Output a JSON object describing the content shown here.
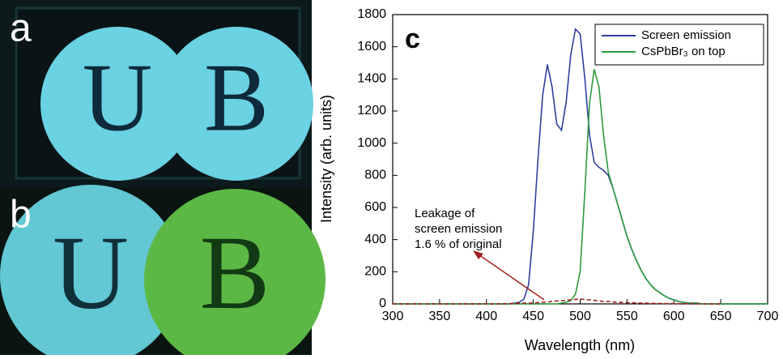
{
  "photo_panels": [
    {
      "label": "a",
      "letters": [
        "U",
        "B"
      ]
    },
    {
      "label": "b",
      "letters": [
        "U",
        "B"
      ]
    }
  ],
  "chart_data": {
    "type": "line",
    "panel_label": "c",
    "x_label": "Wavelength (nm)",
    "y_label": "Intensity (arb. units)",
    "xlim": [
      300,
      700
    ],
    "xticks": [
      300,
      350,
      400,
      450,
      500,
      550,
      600,
      650,
      700
    ],
    "ylim": [
      0,
      1800
    ],
    "yticks": [
      0,
      200,
      400,
      600,
      800,
      1000,
      1200,
      1400,
      1600,
      1800
    ],
    "legend": "top-right",
    "annotation": [
      "Leakage of",
      "screen emission",
      "1.6 % of original"
    ],
    "x": [
      300,
      305,
      310,
      315,
      320,
      325,
      330,
      335,
      340,
      345,
      350,
      355,
      360,
      365,
      370,
      375,
      380,
      385,
      390,
      395,
      400,
      405,
      410,
      415,
      420,
      425,
      430,
      435,
      440,
      445,
      450,
      455,
      460,
      465,
      470,
      475,
      480,
      485,
      490,
      495,
      500,
      505,
      510,
      515,
      520,
      525,
      530,
      535,
      540,
      545,
      550,
      555,
      560,
      565,
      570,
      575,
      580,
      585,
      590,
      595,
      600,
      605,
      610,
      615,
      620,
      625,
      630,
      635,
      640,
      645,
      650,
      655,
      660,
      665,
      670,
      675,
      680,
      685,
      690,
      695,
      700
    ],
    "series": [
      {
        "name": "Screen emission",
        "color": "#2f3f9f",
        "values": [
          0,
          0,
          0,
          0,
          0,
          0,
          0,
          0,
          0,
          0,
          0,
          0,
          0,
          0,
          0,
          0,
          0,
          0,
          0,
          0,
          0,
          0,
          0,
          0,
          0,
          0,
          5,
          10,
          30,
          120,
          450,
          900,
          1300,
          1490,
          1350,
          1120,
          1080,
          1250,
          1550,
          1710,
          1680,
          1400,
          1050,
          880,
          850,
          830,
          800,
          720,
          620,
          520,
          420,
          340,
          270,
          210,
          160,
          120,
          90,
          70,
          50,
          35,
          25,
          15,
          10,
          5,
          5,
          5,
          0,
          0,
          0,
          0,
          0,
          0,
          0,
          0,
          0,
          0,
          0,
          0,
          0,
          0,
          0
        ]
      },
      {
        "name": "CsPbBr₃ on top",
        "color": "#2e9a3e",
        "values": [
          0,
          0,
          0,
          0,
          0,
          0,
          0,
          0,
          0,
          0,
          0,
          0,
          0,
          0,
          0,
          0,
          0,
          0,
          0,
          0,
          0,
          0,
          0,
          0,
          0,
          0,
          0,
          0,
          0,
          0,
          0,
          0,
          0,
          0,
          0,
          0,
          5,
          10,
          20,
          60,
          200,
          700,
          1250,
          1460,
          1350,
          1050,
          820,
          720,
          620,
          520,
          420,
          340,
          270,
          210,
          160,
          120,
          90,
          70,
          50,
          35,
          25,
          15,
          10,
          5,
          5,
          5,
          0,
          0,
          0,
          0,
          0,
          0,
          0,
          0,
          0,
          0,
          0,
          0,
          0,
          0,
          0
        ]
      },
      {
        "color": "#a02020",
        "dashed": true,
        "values": [
          0,
          0,
          0,
          0,
          0,
          0,
          0,
          0,
          0,
          0,
          0,
          0,
          0,
          0,
          0,
          0,
          0,
          0,
          0,
          0,
          0,
          0,
          0,
          0,
          1,
          2,
          3,
          4,
          5,
          5,
          5,
          8,
          10,
          12,
          15,
          18,
          20,
          22,
          25,
          28,
          30,
          28,
          25,
          22,
          18,
          15,
          15,
          12,
          10,
          9,
          8,
          7,
          6,
          5,
          5,
          4,
          3,
          3,
          2,
          2,
          2,
          1,
          1,
          1,
          0,
          0,
          0,
          0,
          0,
          0,
          0,
          null,
          null,
          null,
          null,
          null,
          null,
          null,
          null,
          null,
          null
        ]
      }
    ]
  }
}
